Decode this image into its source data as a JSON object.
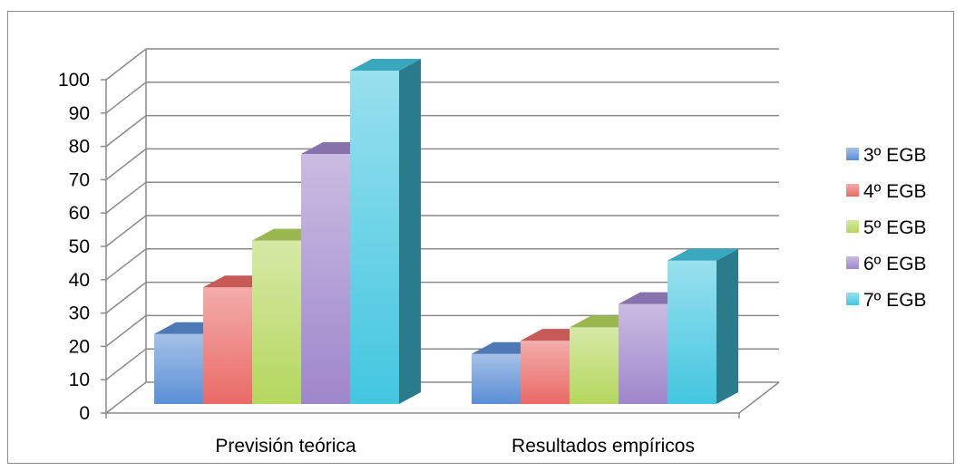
{
  "chart_data": {
    "type": "bar",
    "categories": [
      "Previsión teórica",
      "Resultados empíricos"
    ],
    "series": [
      {
        "name": "3º EGB",
        "values": [
          21,
          15
        ],
        "color": "#5b8fd6"
      },
      {
        "name": "4º EGB",
        "values": [
          35,
          19
        ],
        "color": "#ea6a66"
      },
      {
        "name": "5º EGB",
        "values": [
          49,
          23
        ],
        "color": "#b5d75e"
      },
      {
        "name": "6º EGB",
        "values": [
          75,
          30
        ],
        "color": "#9f86cb"
      },
      {
        "name": "7º EGB",
        "values": [
          100,
          43
        ],
        "color": "#43c6e0"
      }
    ],
    "ylim": [
      0,
      100
    ],
    "yticks": [
      0,
      10,
      20,
      30,
      40,
      50,
      60,
      70,
      80,
      90,
      100
    ],
    "grid": true,
    "legend_position": "right",
    "title": "",
    "xlabel": "",
    "ylabel": ""
  }
}
